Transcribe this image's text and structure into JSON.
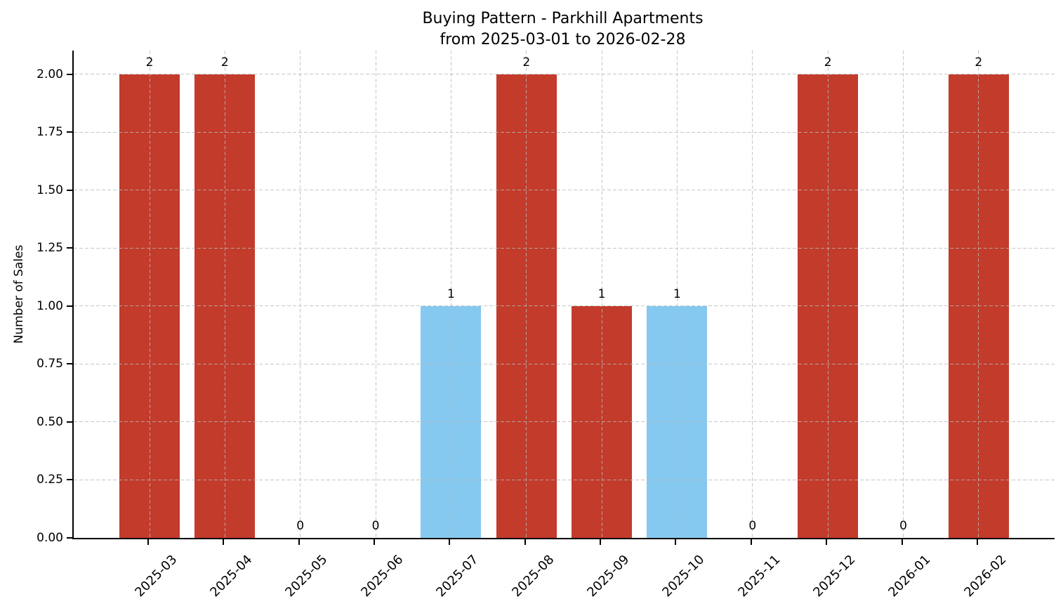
{
  "figure": {
    "kind": "matplotlib bar chart screenshot",
    "background": "#ffffff"
  },
  "chart_data": {
    "type": "bar",
    "title": "Buying Pattern - Parkhill Apartments",
    "subtitle": "from 2025-03-01 to 2026-02-28",
    "xlabel": "",
    "ylabel": "Number of Sales",
    "categories": [
      "2025-03",
      "2025-04",
      "2025-05",
      "2025-06",
      "2025-07",
      "2025-08",
      "2025-09",
      "2025-10",
      "2025-11",
      "2025-12",
      "2026-01",
      "2026-02"
    ],
    "values": [
      2,
      2,
      0,
      0,
      1,
      2,
      1,
      1,
      0,
      2,
      0,
      2
    ],
    "value_labels": [
      "2",
      "2",
      "0",
      "0",
      "1",
      "2",
      "1",
      "1",
      "0",
      "2",
      "0",
      "2"
    ],
    "bar_colors": [
      "#c23b2b",
      "#c23b2b",
      null,
      null,
      "#85c9f0",
      "#c23b2b",
      "#c23b2b",
      "#85c9f0",
      null,
      "#c23b2b",
      null,
      "#c23b2b"
    ],
    "yticks": [
      0,
      0.25,
      0.5,
      0.75,
      1.0,
      1.25,
      1.5,
      1.75,
      2.0
    ],
    "ytick_labels": [
      "0.00",
      "0.25",
      "0.50",
      "0.75",
      "1.00",
      "1.25",
      "1.50",
      "1.75",
      "2.00"
    ],
    "ylim": [
      0,
      2.103
    ],
    "grid": true,
    "grid_style": "dashed, horizontal and vertical, drawn above bars",
    "legend": "none",
    "xtick_rotation": 45
  },
  "colors": {
    "bar_red": "#c23b2b",
    "bar_blue": "#85c9f0",
    "grid": "#b9b9b9",
    "axis": "#000000",
    "text": "#000000"
  }
}
